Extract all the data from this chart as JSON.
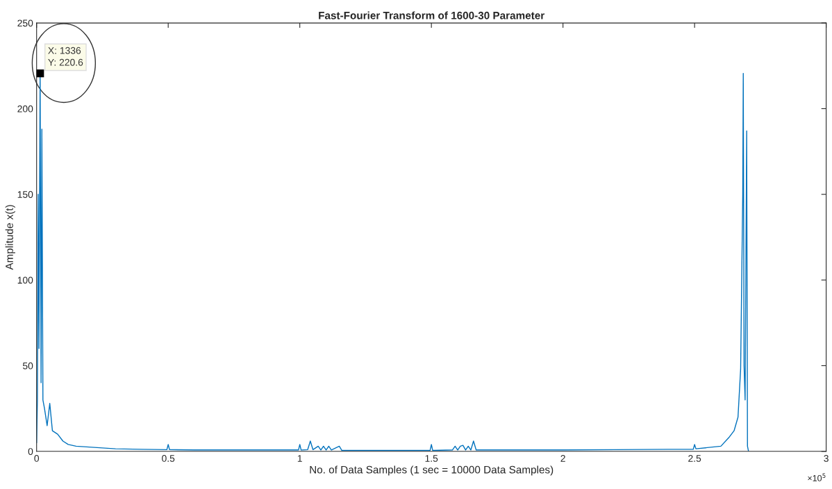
{
  "chart_data": {
    "type": "line",
    "title": "Fast-Fourier Transform of 1600-30 Parameter",
    "xlabel": "No. of Data Samples (1 sec = 10000 Data Samples)",
    "ylabel": "Amplitude x(t)",
    "x": [
      0,
      0.003,
      0.006,
      0.009,
      0.01336,
      0.017,
      0.02,
      0.024,
      0.03,
      0.04,
      0.05,
      0.06,
      0.08,
      0.1,
      0.12,
      0.15,
      0.2,
      0.25,
      0.3,
      0.4,
      0.495,
      0.5,
      0.505,
      0.6,
      0.8,
      0.995,
      1.0,
      1.005,
      1.03,
      1.04,
      1.05,
      1.07,
      1.08,
      1.09,
      1.1,
      1.11,
      1.12,
      1.15,
      1.16,
      1.3,
      1.495,
      1.5,
      1.505,
      1.58,
      1.59,
      1.6,
      1.61,
      1.62,
      1.63,
      1.64,
      1.65,
      1.66,
      1.67,
      1.8,
      2.0,
      2.2,
      2.4,
      2.495,
      2.5,
      2.505,
      2.6,
      2.63,
      2.65,
      2.665,
      2.675,
      2.683,
      2.685,
      2.688,
      2.692,
      2.698,
      2.701,
      2.705
    ],
    "series": [
      {
        "color": "#0072bd",
        "values": [
          5,
          30,
          150,
          60,
          220.6,
          40,
          188,
          30,
          25,
          15,
          28,
          12,
          10,
          6,
          4,
          3,
          2.5,
          2,
          1.5,
          1.2,
          1,
          4,
          1,
          0.8,
          0.8,
          0.8,
          4,
          0.8,
          1,
          6,
          1,
          3,
          0.8,
          3,
          0.8,
          3,
          0.8,
          3,
          0.5,
          0.5,
          0.5,
          4,
          0.5,
          0.8,
          3,
          0.8,
          3,
          3.5,
          0.8,
          3,
          0.8,
          6,
          0.8,
          0.8,
          0.8,
          1,
          1.2,
          1.2,
          4,
          1.5,
          3,
          8,
          12,
          20,
          48,
          150,
          220.6,
          50,
          30,
          187,
          3,
          0
        ]
      }
    ],
    "xlim": [
      0,
      3
    ],
    "ylim": [
      0,
      250
    ],
    "xticks": [
      0,
      0.5,
      1,
      1.5,
      2,
      2.5,
      3
    ],
    "yticks": [
      0,
      50,
      100,
      150,
      200,
      250
    ],
    "grid": false,
    "marker": "none",
    "line_style": "solid",
    "annotations": [
      "×10$^{5}$",
      {
        "text": "X: 1336\nY: 220.6",
        "x": 0.01336,
        "y": 220.6
      }
    ]
  }
}
